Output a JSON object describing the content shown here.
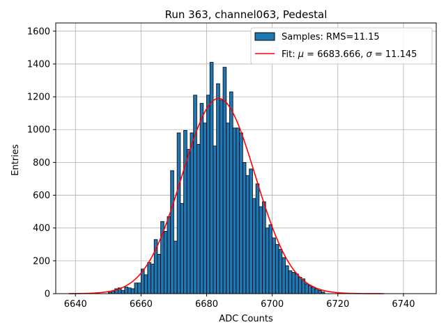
{
  "chart_data": {
    "type": "bar",
    "title": "Run 363, channel063, Pedestal",
    "xlabel": "ADC Counts",
    "ylabel": "Entries",
    "xlim": [
      6634,
      6750
    ],
    "ylim": [
      0,
      1650
    ],
    "xticks": [
      6640,
      6660,
      6680,
      6700,
      6720,
      6740
    ],
    "yticks": [
      0,
      200,
      400,
      600,
      800,
      1000,
      1200,
      1400,
      1600
    ],
    "grid": true,
    "legend_position": "top-right",
    "colors": {
      "bars": "#1f77b4",
      "bar_edge": "#000000",
      "fit": "#ff0000",
      "grid": "#b0b0b0"
    },
    "histogram": {
      "name": "Samples: RMS=11.15",
      "bin_edges_start": 6650,
      "bin_width": 1,
      "counts": [
        8,
        16,
        30,
        35,
        20,
        40,
        35,
        30,
        65,
        65,
        150,
        115,
        190,
        180,
        330,
        240,
        440,
        380,
        470,
        750,
        320,
        980,
        550,
        995,
        880,
        980,
        1210,
        910,
        1160,
        1040,
        1210,
        1410,
        900,
        1280,
        1180,
        1380,
        1040,
        1230,
        1010,
        1010,
        980,
        800,
        720,
        760,
        580,
        670,
        530,
        560,
        400,
        420,
        340,
        300,
        270,
        220,
        170,
        140,
        130,
        120,
        100,
        90,
        60,
        50,
        40,
        30,
        20,
        10
      ]
    },
    "fit": {
      "name": "Fit: $\\mu$ = 6683.666, $\\sigma$ = 11.145",
      "legend_text_parts": [
        "Fit: ",
        "μ",
        " = 6683.666, ",
        "σ",
        " = 11.145"
      ],
      "mu": 6683.666,
      "sigma": 11.145,
      "amplitude": 1190,
      "x_range": [
        6638,
        6734
      ]
    }
  }
}
